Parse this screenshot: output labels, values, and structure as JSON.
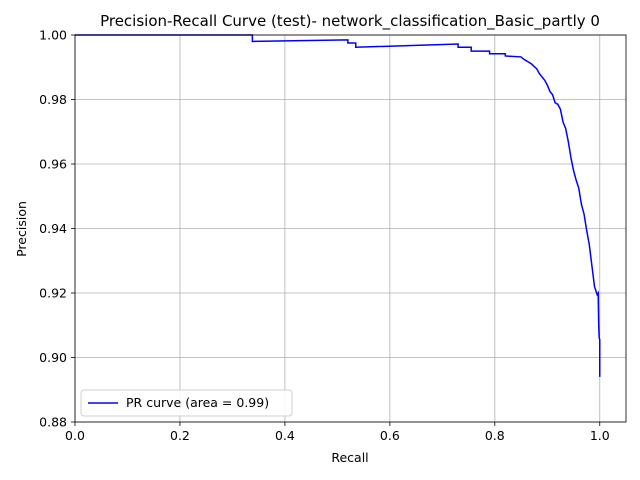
{
  "chart_data": {
    "type": "line",
    "title": "Precision-Recall Curve (test)- network_classification_Basic_partly 0",
    "xlabel": "Recall",
    "ylabel": "Precision",
    "xlim": [
      0.0,
      1.05
    ],
    "ylim": [
      0.88,
      1.0
    ],
    "xticks": [
      "0.0",
      "0.2",
      "0.4",
      "0.6",
      "0.8",
      "1.0"
    ],
    "yticks": [
      "0.88",
      "0.90",
      "0.92",
      "0.94",
      "0.96",
      "0.98",
      "1.00"
    ],
    "grid": true,
    "legend_position": "lower-left",
    "line_color": "#0000ff",
    "grid_color": "#b0b0b0",
    "series": [
      {
        "name": "PR curve (area = 0.99)",
        "x": [
          0.0,
          0.338,
          0.338,
          0.52,
          0.52,
          0.535,
          0.535,
          0.73,
          0.73,
          0.755,
          0.755,
          0.79,
          0.79,
          0.82,
          0.82,
          0.85,
          0.855,
          0.87,
          0.88,
          0.885,
          0.895,
          0.9,
          0.905,
          0.91,
          0.915,
          0.92,
          0.925,
          0.93,
          0.935,
          0.94,
          0.945,
          0.95,
          0.955,
          0.96,
          0.965,
          0.97,
          0.975,
          0.98,
          0.985,
          0.99,
          0.993,
          0.995,
          0.997,
          0.998,
          0.999,
          1.0,
          1.0,
          1.0
        ],
        "y": [
          1.0,
          1.0,
          0.998,
          0.9985,
          0.9975,
          0.9975,
          0.9962,
          0.9972,
          0.9962,
          0.9962,
          0.995,
          0.995,
          0.9942,
          0.9942,
          0.9935,
          0.9932,
          0.9925,
          0.991,
          0.9895,
          0.988,
          0.986,
          0.9845,
          0.9825,
          0.9815,
          0.979,
          0.9785,
          0.977,
          0.973,
          0.971,
          0.967,
          0.962,
          0.958,
          0.955,
          0.9525,
          0.9475,
          0.9445,
          0.9395,
          0.935,
          0.9285,
          0.922,
          0.9205,
          0.9195,
          0.92,
          0.91,
          0.906,
          0.9055,
          0.894,
          0.894
        ]
      }
    ]
  }
}
